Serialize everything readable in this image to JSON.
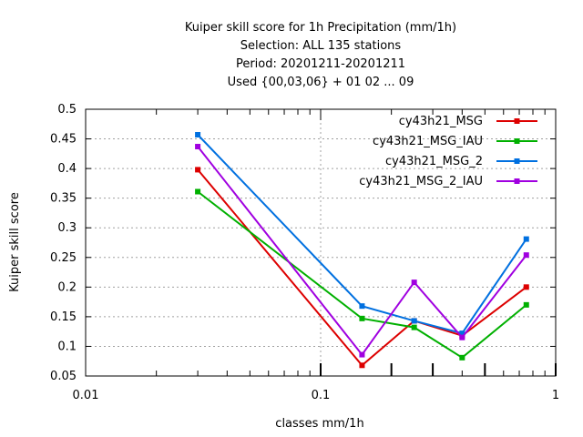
{
  "chart_data": {
    "type": "line",
    "title_lines": [
      "Kuiper skill score  for 1h Precipitation (mm/1h)",
      "Selection: ALL    135 stations",
      "Period: 20201211-20201211",
      "Used {00,03,06} + 01 02 ... 09"
    ],
    "xlabel": "classes mm/1h",
    "ylabel": "Kuiper skill score",
    "x_scale": "log",
    "xlim": [
      0.01,
      1
    ],
    "ylim": [
      0.05,
      0.5
    ],
    "x_tick_labels": [
      "0.01",
      "0.1",
      "1"
    ],
    "y_tick_labels": [
      "0.05",
      "0.1",
      "0.15",
      "0.2",
      "0.25",
      "0.3",
      "0.35",
      "0.4",
      "0.45",
      "0.5"
    ],
    "y_ticks": [
      0.05,
      0.1,
      0.15,
      0.2,
      0.25,
      0.3,
      0.35,
      0.4,
      0.45,
      0.5
    ],
    "x_ticks": [
      0.01,
      0.1,
      1
    ],
    "grid": true,
    "legend_position": "top-right",
    "x": [
      0.03,
      0.15,
      0.25,
      0.4,
      0.75
    ],
    "series": [
      {
        "name": "cy43h21_MSG",
        "color": "#dd0000",
        "values": [
          0.398,
          0.068,
          0.143,
          0.118,
          0.2
        ]
      },
      {
        "name": "cy43h21_MSG_IAU",
        "color": "#00b000",
        "values": [
          0.361,
          0.147,
          0.132,
          0.081,
          0.17
        ]
      },
      {
        "name": "cy43h21_MSG_2",
        "color": "#0070e0",
        "values": [
          0.457,
          0.168,
          0.143,
          0.122,
          0.281
        ]
      },
      {
        "name": "cy43h21_MSG_2_IAU",
        "color": "#a000e0",
        "values": [
          0.437,
          0.086,
          0.208,
          0.115,
          0.254
        ]
      }
    ]
  }
}
